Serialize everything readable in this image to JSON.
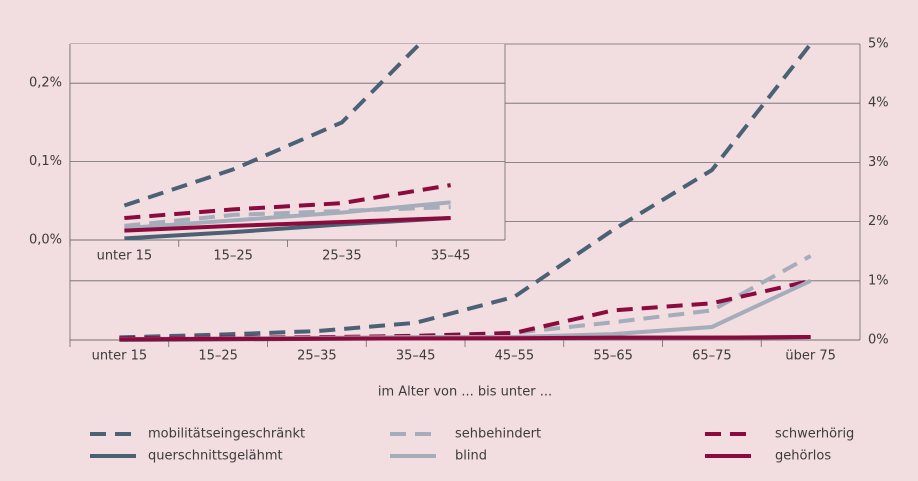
{
  "chart_data": [
    {
      "type": "line",
      "x_label": "im Alter von ... bis unter ...",
      "categories": [
        "unter 15",
        "15–25",
        "25–35",
        "35–45",
        "45–55",
        "55–65",
        "65–75",
        "über 75"
      ],
      "ylim": [
        0,
        5
      ],
      "yticks": [
        {
          "value": 0,
          "label": "0%"
        },
        {
          "value": 1,
          "label": "1%"
        },
        {
          "value": 2,
          "label": "2%"
        },
        {
          "value": 3,
          "label": "3%"
        },
        {
          "value": 4,
          "label": "4%"
        },
        {
          "value": 5,
          "label": "5%"
        }
      ],
      "grid": true,
      "y_axis_side": "right",
      "series": [
        {
          "name": "mobilitätseingeschränkt",
          "color": "#4b6174",
          "dashed": true,
          "values": [
            0.044,
            0.09,
            0.15,
            0.29,
            0.73,
            1.86,
            2.87,
            5.0
          ]
        },
        {
          "name": "sehbehindert",
          "color": "#a4adb9",
          "dashed": true,
          "values": [
            0.018,
            0.032,
            0.037,
            0.042,
            0.12,
            0.3,
            0.5,
            1.42
          ]
        },
        {
          "name": "schwerhörig",
          "color": "#8c0b3e",
          "dashed": true,
          "values": [
            0.028,
            0.039,
            0.047,
            0.07,
            0.12,
            0.5,
            0.62,
            1.0
          ]
        },
        {
          "name": "querschnittsgelähmt",
          "color": "#4b6174",
          "dashed": false,
          "values": [
            0.002,
            0.01,
            0.02,
            0.028,
            0.03,
            0.04,
            0.04,
            0.05
          ]
        },
        {
          "name": "blind",
          "color": "#a4adb9",
          "dashed": false,
          "values": [
            0.015,
            0.025,
            0.035,
            0.048,
            0.05,
            0.1,
            0.22,
            1.0
          ]
        },
        {
          "name": "gehörlos",
          "color": "#8c0b3e",
          "dashed": false,
          "values": [
            0.012,
            0.018,
            0.023,
            0.028,
            0.03,
            0.04,
            0.04,
            0.05
          ]
        }
      ]
    },
    {
      "type": "line",
      "categories": [
        "unter 15",
        "15–25",
        "25–35",
        "35–45"
      ],
      "ylim": [
        0,
        0.25
      ],
      "yticks": [
        {
          "value": 0,
          "label": "0,0%"
        },
        {
          "value": 0.1,
          "label": "0,1%"
        },
        {
          "value": 0.2,
          "label": "0,2%"
        }
      ],
      "grid": true,
      "y_axis_side": "left",
      "series": [
        {
          "color": "#4b6174",
          "dashed": true,
          "values": [
            0.044,
            0.09,
            0.15,
            0.29
          ]
        },
        {
          "color": "#a4adb9",
          "dashed": true,
          "values": [
            0.018,
            0.032,
            0.037,
            0.042
          ]
        },
        {
          "color": "#8c0b3e",
          "dashed": true,
          "values": [
            0.028,
            0.039,
            0.047,
            0.07
          ]
        },
        {
          "color": "#4b6174",
          "dashed": false,
          "values": [
            0.002,
            0.01,
            0.02,
            0.028
          ]
        },
        {
          "color": "#a4adb9",
          "dashed": false,
          "values": [
            0.015,
            0.025,
            0.035,
            0.048
          ]
        },
        {
          "color": "#8c0b3e",
          "dashed": false,
          "values": [
            0.012,
            0.018,
            0.023,
            0.028
          ]
        }
      ]
    }
  ]
}
